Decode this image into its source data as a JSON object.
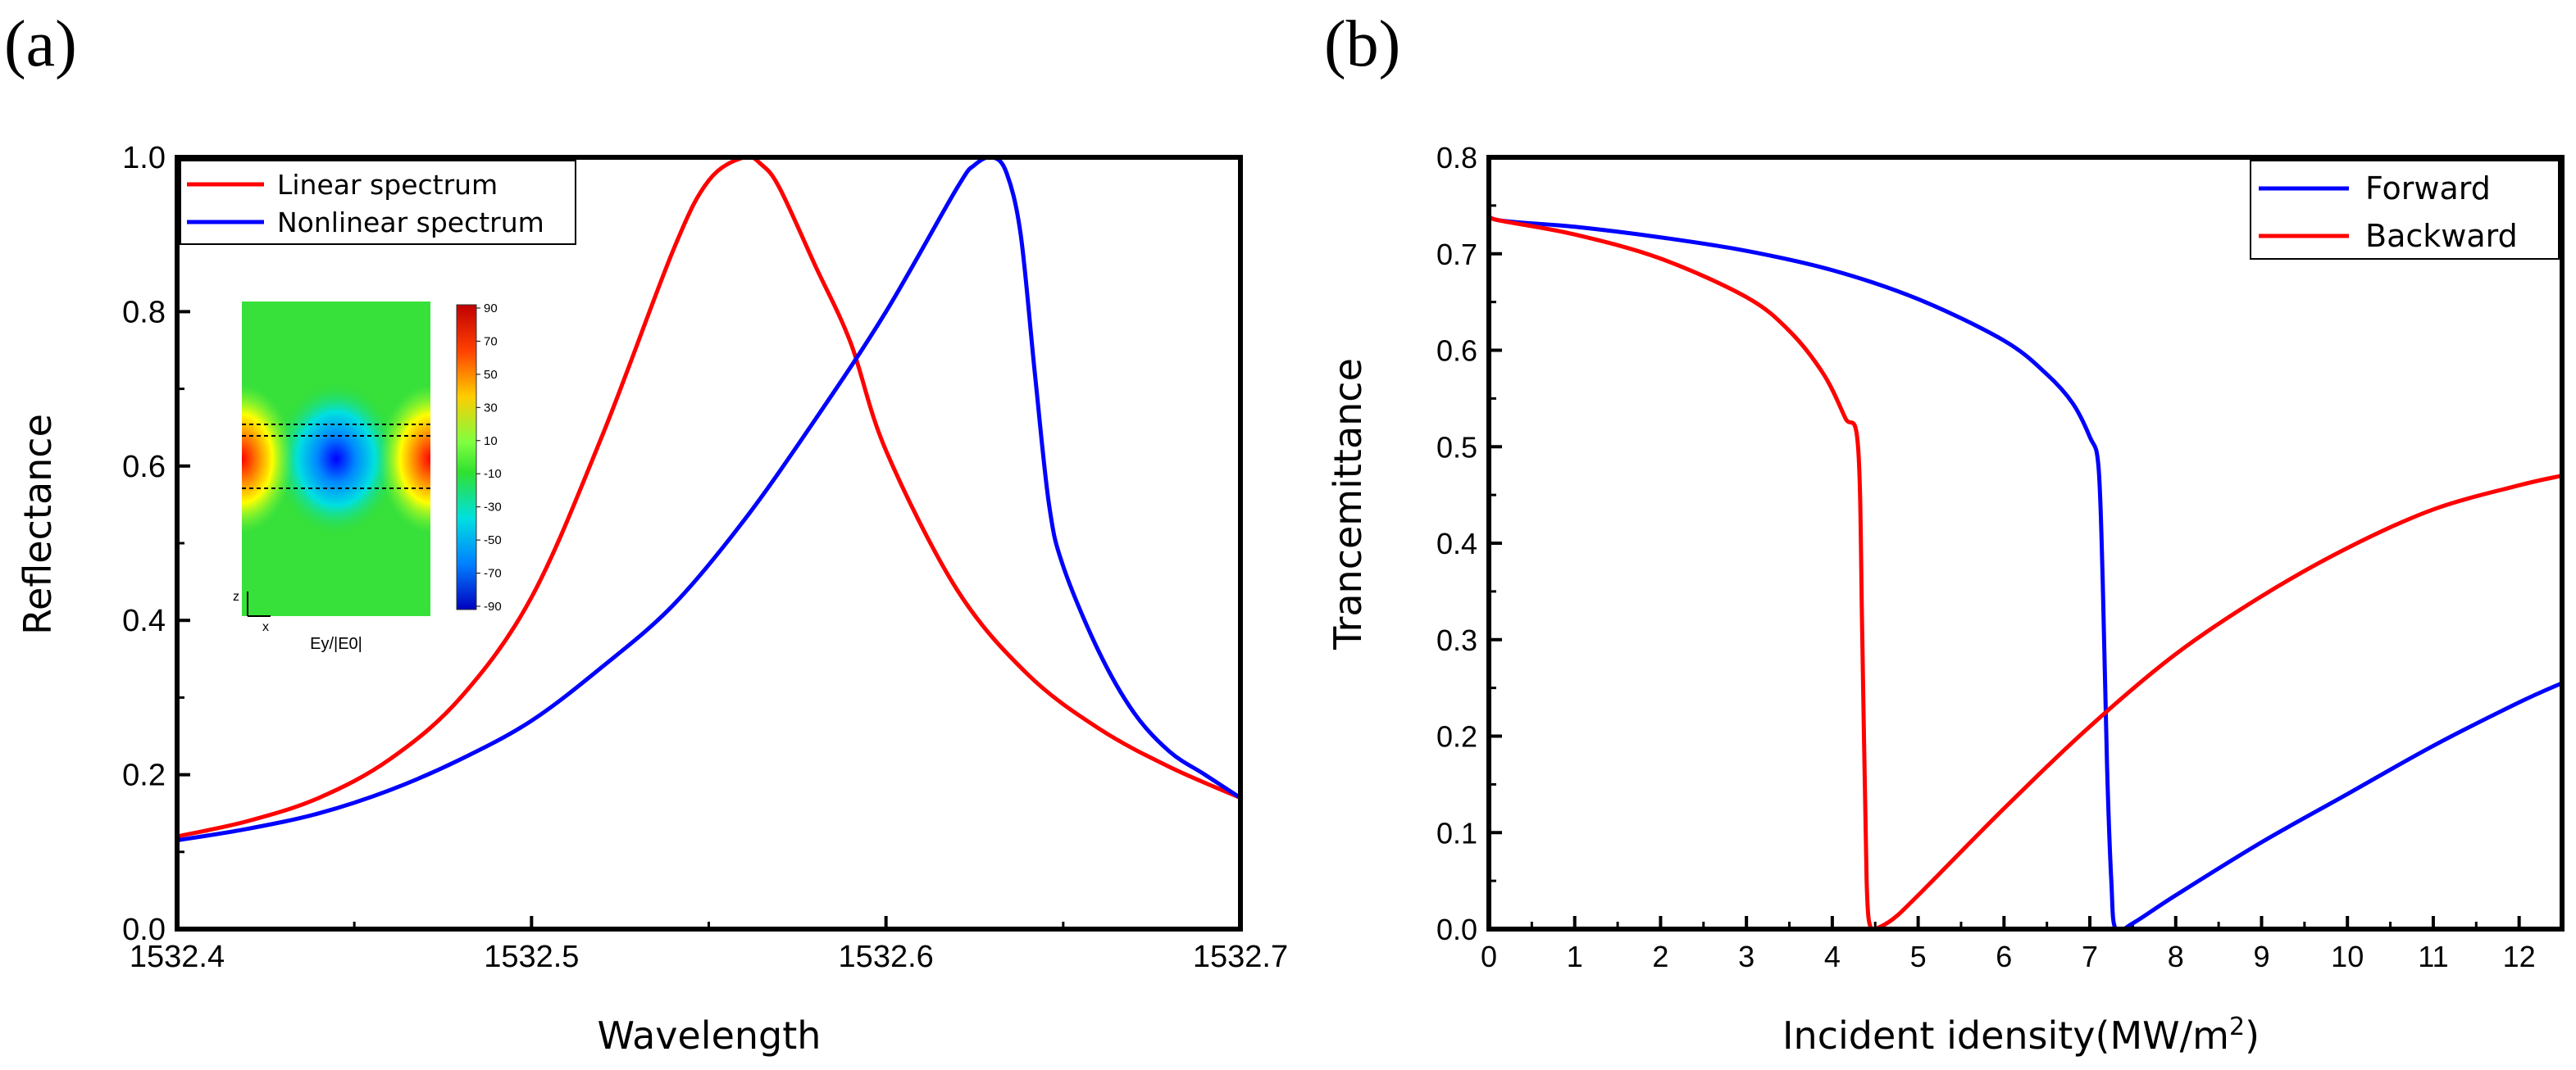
{
  "panels": [
    {
      "label": "(a)"
    },
    {
      "label": "(b)"
    }
  ],
  "chart_data": [
    {
      "type": "line",
      "title": "",
      "xlabel": "Wavelength",
      "ylabel": "Reflectance",
      "xlim": [
        1532.4,
        1532.7
      ],
      "ylim": [
        0.0,
        1.0
      ],
      "xticks": [
        1532.4,
        1532.5,
        1532.6,
        1532.7
      ],
      "xtick_labels": [
        "1532.4",
        "1532.5",
        "1532.6",
        "1532.7"
      ],
      "yticks": [
        0.0,
        0.2,
        0.4,
        0.6,
        0.8,
        1.0
      ],
      "ytick_labels": [
        "0.0",
        "0.2",
        "0.4",
        "0.6",
        "0.8",
        "1.0"
      ],
      "legend_position": "top-left",
      "grid": false,
      "series": [
        {
          "name": "Linear spectrum",
          "color": "#ff0000",
          "x": [
            1532.4,
            1532.42,
            1532.44,
            1532.46,
            1532.48,
            1532.5,
            1532.52,
            1532.54,
            1532.55,
            1532.56,
            1532.565,
            1532.57,
            1532.58,
            1532.59,
            1532.6,
            1532.62,
            1532.64,
            1532.66,
            1532.68,
            1532.7
          ],
          "y": [
            0.12,
            0.14,
            0.17,
            0.22,
            0.3,
            0.43,
            0.64,
            0.88,
            0.97,
            1.0,
            0.99,
            0.96,
            0.86,
            0.76,
            0.62,
            0.44,
            0.33,
            0.26,
            0.21,
            0.17
          ]
        },
        {
          "name": "Nonlinear spectrum",
          "color": "#0000ff",
          "x": [
            1532.4,
            1532.42,
            1532.44,
            1532.46,
            1532.48,
            1532.5,
            1532.52,
            1532.54,
            1532.56,
            1532.58,
            1532.6,
            1532.62,
            1532.625,
            1532.63,
            1532.634,
            1532.638,
            1532.642,
            1532.646,
            1532.65,
            1532.66,
            1532.67,
            1532.68,
            1532.69,
            1532.7
          ],
          "y": [
            0.115,
            0.13,
            0.15,
            0.18,
            0.22,
            0.27,
            0.34,
            0.42,
            0.53,
            0.66,
            0.8,
            0.96,
            0.99,
            1.0,
            0.98,
            0.9,
            0.72,
            0.55,
            0.47,
            0.36,
            0.28,
            0.23,
            0.2,
            0.17
          ]
        }
      ],
      "inset": {
        "xlabel": "Ey/|E0|",
        "axis_z": "z",
        "axis_x": "x",
        "colorbar_ticks": [
          "90",
          "70",
          "50",
          "30",
          "10",
          "-10",
          "-30",
          "-50",
          "-70",
          "-90"
        ]
      }
    },
    {
      "type": "line",
      "title": "",
      "xlabel": "Incident idensity(MW/m",
      "xlabel_sup": "2",
      "xlabel_end": ")",
      "ylabel": "Trancemittance",
      "xlim": [
        0,
        12.5
      ],
      "ylim": [
        0.0,
        0.8
      ],
      "xticks": [
        0,
        1,
        2,
        3,
        4,
        5,
        6,
        7,
        8,
        9,
        10,
        11,
        12
      ],
      "xtick_labels": [
        "0",
        "1",
        "2",
        "3",
        "4",
        "5",
        "6",
        "7",
        "8",
        "9",
        "10",
        "11",
        "12"
      ],
      "yticks": [
        0.0,
        0.1,
        0.2,
        0.3,
        0.4,
        0.5,
        0.6,
        0.7,
        0.8
      ],
      "ytick_labels": [
        "0.0",
        "0.1",
        "0.2",
        "0.3",
        "0.4",
        "0.5",
        "0.6",
        "0.7",
        "0.8"
      ],
      "legend_position": "top-right",
      "grid": false,
      "series": [
        {
          "name": "Forward",
          "color": "#0000ff",
          "x": [
            0,
            0.1,
            1,
            2,
            3,
            4,
            5,
            6,
            6.5,
            6.8,
            7.0,
            7.1,
            7.15,
            7.2,
            7.25,
            7.3,
            7.5,
            8,
            9,
            10,
            11,
            12,
            12.5
          ],
          "y": [
            0.745,
            0.735,
            0.728,
            0.717,
            0.703,
            0.683,
            0.653,
            0.61,
            0.575,
            0.545,
            0.51,
            0.48,
            0.36,
            0.17,
            0.05,
            0.0,
            0.006,
            0.035,
            0.09,
            0.14,
            0.19,
            0.235,
            0.255
          ]
        },
        {
          "name": "Backward",
          "color": "#ff0000",
          "x": [
            0,
            0.1,
            1,
            2,
            3,
            3.5,
            3.9,
            4.15,
            4.3,
            4.35,
            4.4,
            4.45,
            4.5,
            4.7,
            5,
            6,
            7,
            8,
            9,
            10,
            11,
            12,
            12.5
          ],
          "y": [
            0.74,
            0.735,
            0.72,
            0.695,
            0.655,
            0.62,
            0.575,
            0.53,
            0.5,
            0.3,
            0.05,
            0.0,
            0.0,
            0.01,
            0.035,
            0.125,
            0.21,
            0.285,
            0.345,
            0.395,
            0.435,
            0.46,
            0.47
          ]
        }
      ]
    }
  ]
}
